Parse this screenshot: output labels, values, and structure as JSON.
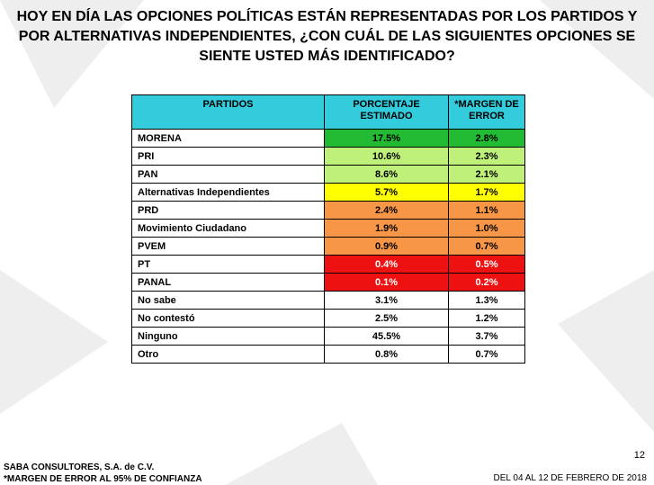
{
  "title": "HOY EN DÍA LAS OPCIONES POLÍTICAS ESTÁN REPRESENTADAS POR LOS PARTIDOS Y POR ALTERNATIVAS INDEPENDIENTES, ¿CON CUÁL DE LAS SIGUIENTES OPCIONES SE SIENTE USTED MÁS IDENTIFICADO?",
  "chart_data": {
    "type": "table",
    "columns": [
      "PARTIDOS",
      "PORCENTAJE ESTIMADO",
      "*MARGEN DE ERROR"
    ],
    "rows": [
      {
        "party": "MORENA",
        "pct": "17.5%",
        "err": "2.8%",
        "color": "#22bb33",
        "text_color": "#000000"
      },
      {
        "party": "PRI",
        "pct": "10.6%",
        "err": "2.3%",
        "color": "#bff07a",
        "text_color": "#000000"
      },
      {
        "party": "PAN",
        "pct": "8.6%",
        "err": "2.1%",
        "color": "#bff07a",
        "text_color": "#000000"
      },
      {
        "party": "Alternativas Independientes",
        "pct": "5.7%",
        "err": "1.7%",
        "color": "#ffff00",
        "text_color": "#000000"
      },
      {
        "party": "PRD",
        "pct": "2.4%",
        "err": "1.1%",
        "color": "#f79646",
        "text_color": "#000000"
      },
      {
        "party": "Movimiento Ciudadano",
        "pct": "1.9%",
        "err": "1.0%",
        "color": "#f79646",
        "text_color": "#000000"
      },
      {
        "party": "PVEM",
        "pct": "0.9%",
        "err": "0.7%",
        "color": "#f79646",
        "text_color": "#000000"
      },
      {
        "party": "PT",
        "pct": "0.4%",
        "err": "0.5%",
        "color": "#ee1111",
        "text_color": "#ffffff"
      },
      {
        "party": "PANAL",
        "pct": "0.1%",
        "err": "0.2%",
        "color": "#ee1111",
        "text_color": "#ffffff"
      },
      {
        "party": "No sabe",
        "pct": "3.1%",
        "err": "1.3%",
        "color": "#ffffff",
        "text_color": "#000000"
      },
      {
        "party": "No contestó",
        "pct": "2.5%",
        "err": "1.2%",
        "color": "#ffffff",
        "text_color": "#000000"
      },
      {
        "party": "Ninguno",
        "pct": "45.5%",
        "err": "3.7%",
        "color": "#ffffff",
        "text_color": "#000000"
      },
      {
        "party": "Otro",
        "pct": "0.8%",
        "err": "0.7%",
        "color": "#ffffff",
        "text_color": "#000000"
      }
    ]
  },
  "page_number": "12",
  "footer": {
    "company": "SABA CONSULTORES, S.A. de C.V.",
    "note": "*MARGEN DE ERROR AL 95% DE CONFIANZA",
    "date": "DEL 04 AL 12 DE FEBRERO DE 2018"
  },
  "colors": {
    "header_bg": "#33ccdd",
    "watermark": "#eeeeee"
  }
}
